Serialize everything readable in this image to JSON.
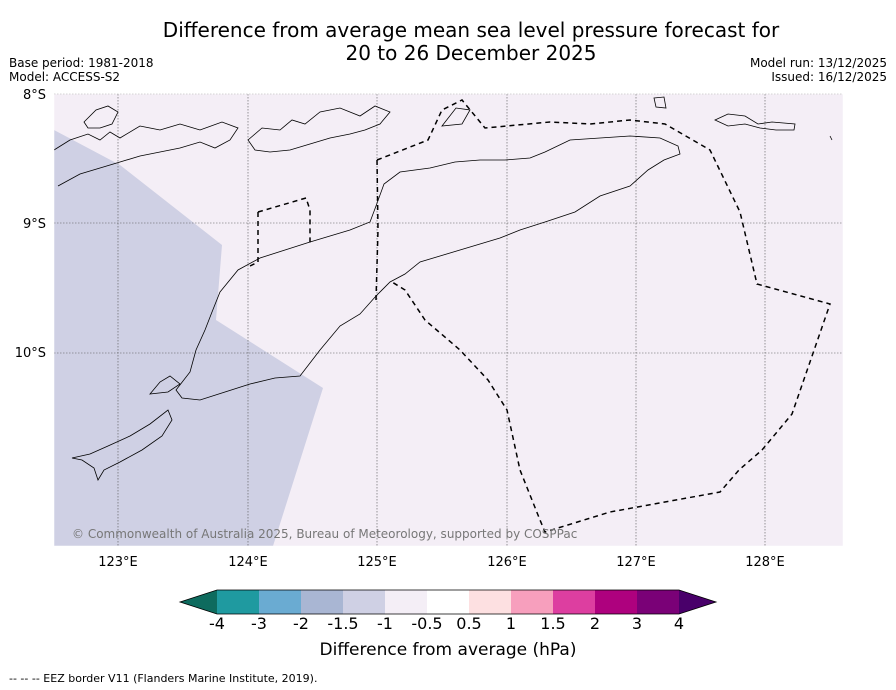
{
  "title_line1": "Difference from average mean sea level pressure forecast for",
  "title_line2": "20 to 26 December 2025",
  "base_period": "Base period: 1981-2018",
  "model": "Model: ACCESS-S2",
  "model_run": "Model run: 13/12/2025",
  "issued": "Issued: 16/12/2025",
  "lat_labels": [
    "8°S",
    "9°S",
    "10°S"
  ],
  "lon_labels": [
    "123°E",
    "124°E",
    "125°E",
    "126°E",
    "127°E",
    "128°E"
  ],
  "copyright": "© Commonwealth of Australia 2025, Bureau of Meteorology, supported by COSPPac",
  "colorbar": {
    "ticks": [
      "-4",
      "-3",
      "-2",
      "-1.5",
      "-1",
      "-0.5",
      "0.5",
      "1",
      "1.5",
      "2",
      "3",
      "4"
    ],
    "colors": [
      "#0e6b5e",
      "#1f9aa0",
      "#6aabd2",
      "#a9b6d3",
      "#cfd0e4",
      "#f4eef6",
      "#ffffff",
      "#fde0e1",
      "#f79fbd",
      "#dd3ea0",
      "#ae017e",
      "#7a0177",
      "#49006a"
    ],
    "label": "Difference from average (hPa)"
  },
  "footnote": "--  --  -- EEZ border V11 (Flanders Marine Institute, 2019)."
}
